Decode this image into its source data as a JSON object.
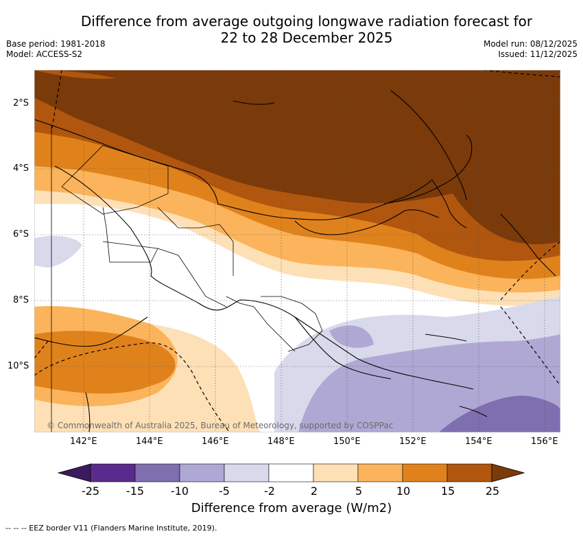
{
  "title": {
    "line1": "Difference from average outgoing longwave radiation forecast for",
    "line2": "22 to 28 December 2025"
  },
  "meta_left": {
    "base_period": "Base period: 1981-2018",
    "model": "Model: ACCESS-S2"
  },
  "meta_right": {
    "model_run": "Model run: 08/12/2025",
    "issued": "Issued: 11/12/2025"
  },
  "map": {
    "lat_labels": [
      "2°S",
      "4°S",
      "6°S",
      "8°S",
      "10°S"
    ],
    "lon_labels": [
      "142°E",
      "144°E",
      "146°E",
      "148°E",
      "150°E",
      "152°E",
      "154°E",
      "156°E"
    ],
    "credit": "© Commonwealth of Australia 2025, Bureau of Meteorology, supported by COSPPac",
    "lat_range": [
      -12,
      -1
    ],
    "lon_range": [
      140.5,
      156.5
    ]
  },
  "colorbar": {
    "title": "Difference from average (W/m2)",
    "tick_labels": [
      "-25",
      "-15",
      "-10",
      "-5",
      "-2",
      "2",
      "5",
      "10",
      "15",
      "25"
    ],
    "colors": [
      "#3b1a5e",
      "#5a2b8c",
      "#7f6fb0",
      "#b0a8d4",
      "#d9d9ec",
      "#ffffff",
      "#fee0b6",
      "#fbb45c",
      "#e0821c",
      "#b0560e",
      "#7a3a0a"
    ]
  },
  "legend_footer": "--  --  -- EEZ border V11 (Flanders Marine Institute, 2019)."
}
